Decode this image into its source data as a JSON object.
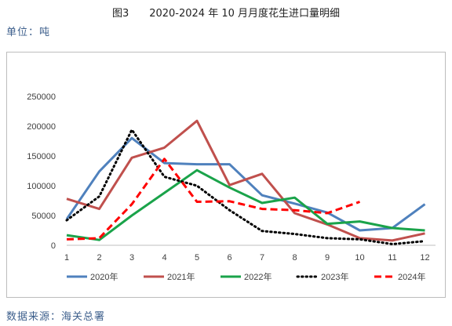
{
  "page": {
    "title": "图3　　2020-2024 年 10 月月度花生进口量明细",
    "unit": "单位：吨",
    "source": "数据来源：海关总署"
  },
  "chart_data": {
    "type": "line",
    "x": [
      1,
      2,
      3,
      4,
      5,
      6,
      7,
      8,
      9,
      10,
      11,
      12
    ],
    "ylim": [
      0,
      250000
    ],
    "yticks": [
      0,
      50000,
      100000,
      150000,
      200000,
      250000
    ],
    "grid": false,
    "legend": "bottom",
    "series": [
      {
        "name": "2020年",
        "color": "#4f81bd",
        "dash": "solid",
        "values": [
          44000,
          124000,
          180000,
          138000,
          136000,
          136000,
          84000,
          70000,
          55000,
          25000,
          29000,
          69000
        ]
      },
      {
        "name": "2021年",
        "color": "#c0504d",
        "dash": "solid",
        "values": [
          78000,
          61000,
          147000,
          164000,
          209000,
          101000,
          120000,
          54000,
          35000,
          12000,
          8000,
          20000
        ]
      },
      {
        "name": "2022年",
        "color": "#1aa34a",
        "dash": "solid",
        "values": [
          17000,
          9000,
          50000,
          88000,
          126000,
          97000,
          71000,
          80000,
          36000,
          40000,
          29000,
          25000
        ]
      },
      {
        "name": "2023年",
        "color": "#000000",
        "dash": "dot",
        "values": [
          42000,
          82000,
          194000,
          115000,
          100000,
          59000,
          24000,
          19000,
          12000,
          10000,
          2000,
          7000
        ]
      },
      {
        "name": "2024年",
        "color": "#ff0000",
        "dash": "dash",
        "values": [
          10000,
          12000,
          69000,
          145000,
          73000,
          74000,
          61000,
          59000,
          54000,
          73000,
          null,
          null
        ]
      }
    ]
  }
}
